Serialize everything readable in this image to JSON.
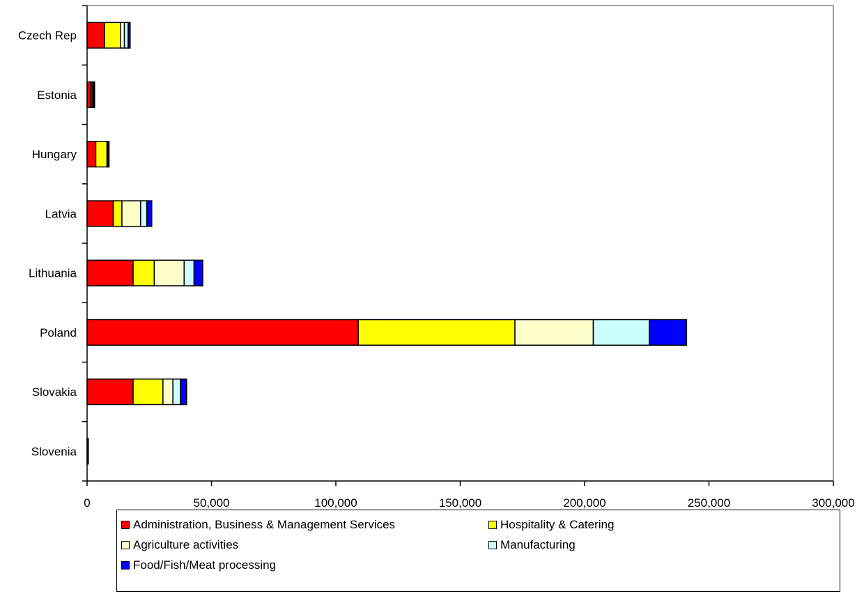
{
  "chart_data": {
    "type": "bar",
    "orientation": "horizontal",
    "stacked": true,
    "title": "",
    "xlabel": "",
    "ylabel": "",
    "categories": [
      "Czech Rep",
      "Estonia",
      "Hungary",
      "Latvia",
      "Lithuania",
      "Poland",
      "Slovakia",
      "Slovenia"
    ],
    "xlim": [
      0,
      300000
    ],
    "x_ticks": [
      0,
      50000,
      100000,
      150000,
      200000,
      250000,
      300000
    ],
    "x_tick_labels": [
      "0",
      "50,000",
      "100,000",
      "150,000",
      "200,000",
      "250,000",
      "300,000"
    ],
    "grid": false,
    "legend_position": "bottom",
    "series": [
      {
        "name": "Administration, Business & Management Services",
        "color": "#ff0000",
        "values": [
          7000,
          1500,
          3500,
          10500,
          18500,
          109000,
          18500,
          0
        ]
      },
      {
        "name": "Hospitality & Catering",
        "color": "#ffff00",
        "values": [
          6500,
          500,
          4500,
          3500,
          8500,
          63000,
          12000,
          0
        ]
      },
      {
        "name": "Agriculture activities",
        "color": "#ffffcc",
        "values": [
          1500,
          500,
          300,
          7500,
          12000,
          31500,
          4000,
          0
        ]
      },
      {
        "name": "Manufacturing",
        "color": "#ccffff",
        "values": [
          1500,
          300,
          300,
          2500,
          4000,
          22500,
          3000,
          0
        ]
      },
      {
        "name": "Food/Fish/Meat processing",
        "color": "#0000ff",
        "values": [
          800,
          200,
          200,
          2000,
          3500,
          15000,
          2500,
          500
        ]
      }
    ]
  }
}
